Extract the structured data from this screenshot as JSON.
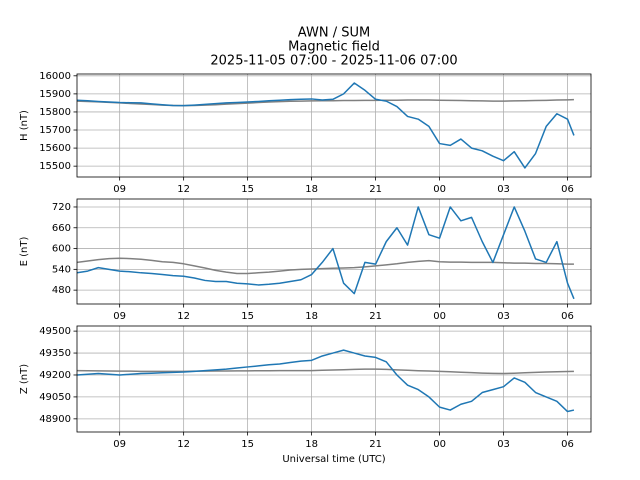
{
  "figure": {
    "title": [
      "AWN / SUM",
      "Magnetic field",
      "2025-11-05 07:00 - 2025-11-06 07:00"
    ]
  },
  "chart_data": [
    {
      "type": "line",
      "ylabel": "H (nT)",
      "grid": true,
      "x": [
        7,
        7.5,
        8,
        8.5,
        9,
        9.5,
        10,
        10.5,
        11,
        11.5,
        12,
        12.5,
        13,
        13.5,
        14,
        14.5,
        15,
        15.5,
        16,
        16.5,
        17,
        17.5,
        18,
        18.5,
        19,
        19.5,
        20,
        20.5,
        21,
        21.5,
        22,
        22.5,
        23,
        23.5,
        24,
        24.5,
        25,
        25.5,
        26,
        26.5,
        27,
        27.5,
        28,
        28.5,
        29,
        29.5,
        30,
        30.3
      ],
      "xlim": [
        7,
        31.1
      ],
      "xticks": [
        {
          "value": 9,
          "label": "09"
        },
        12,
        15,
        18,
        21,
        {
          "value": 24,
          "label": "00"
        },
        {
          "value": 27,
          "label": "03"
        },
        {
          "value": 30,
          "label": "06"
        }
      ],
      "ylim": [
        15440,
        16010
      ],
      "yticks": [
        15500,
        15600,
        15700,
        15800,
        15900,
        16000
      ],
      "series": [
        {
          "color": "#808080",
          "values": [
            15860,
            15858,
            15856,
            15853,
            15850,
            15847,
            15844,
            15841,
            15838,
            15836,
            15835,
            15836,
            15838,
            15840,
            15843,
            15846,
            15849,
            15852,
            15855,
            15857,
            15859,
            15860,
            15861,
            15862,
            15862,
            15863,
            15863,
            15864,
            15864,
            15865,
            15865,
            15866,
            15866,
            15866,
            15865,
            15864,
            15863,
            15862,
            15861,
            15860,
            15860,
            15861,
            15862,
            15863,
            15864,
            15866,
            15867,
            15868
          ]
        },
        {
          "color": "#1f77b4",
          "values": [
            15865,
            15862,
            15858,
            15855,
            15852,
            15851,
            15850,
            15845,
            15840,
            15836,
            15835,
            15838,
            15842,
            15846,
            15850,
            15852,
            15855,
            15858,
            15862,
            15865,
            15868,
            15870,
            15872,
            15866,
            15870,
            15900,
            15960,
            15920,
            15870,
            15860,
            15830,
            15775,
            15760,
            15720,
            15625,
            15615,
            15650,
            15600,
            15585,
            15555,
            15530,
            15580,
            15490,
            15570,
            15720,
            15790,
            15760,
            15670
          ]
        }
      ]
    },
    {
      "type": "line",
      "ylabel": "E (nT)",
      "grid": true,
      "x": [
        7,
        7.5,
        8,
        8.5,
        9,
        9.5,
        10,
        10.5,
        11,
        11.5,
        12,
        12.5,
        13,
        13.5,
        14,
        14.5,
        15,
        15.5,
        16,
        16.5,
        17,
        17.5,
        18,
        18.5,
        19,
        19.5,
        20,
        20.5,
        21,
        21.5,
        22,
        22.5,
        23,
        23.5,
        24,
        24.5,
        25,
        25.5,
        26,
        26.5,
        27,
        27.5,
        28,
        28.5,
        29,
        29.5,
        30,
        30.3
      ],
      "xlim": [
        7,
        31.1
      ],
      "xticks": [
        {
          "value": 9,
          "label": "09"
        },
        12,
        15,
        18,
        21,
        {
          "value": 24,
          "label": "00"
        },
        {
          "value": 27,
          "label": "03"
        },
        {
          "value": 30,
          "label": "06"
        }
      ],
      "ylim": [
        440,
        743
      ],
      "yticks": [
        480,
        540,
        600,
        660,
        720
      ],
      "series": [
        {
          "color": "#808080",
          "values": [
            560,
            564,
            568,
            571,
            572,
            571,
            569,
            566,
            562,
            560,
            556,
            550,
            544,
            537,
            532,
            528,
            528,
            530,
            532,
            535,
            538,
            540,
            541,
            542,
            543,
            544,
            545,
            547,
            550,
            553,
            556,
            560,
            563,
            565,
            562,
            561,
            561,
            560,
            560,
            560,
            559,
            558,
            558,
            557,
            557,
            556,
            555,
            555
          ]
        },
        {
          "color": "#1f77b4",
          "values": [
            530,
            535,
            545,
            540,
            535,
            533,
            530,
            528,
            525,
            522,
            520,
            515,
            508,
            505,
            505,
            500,
            498,
            495,
            497,
            500,
            505,
            510,
            525,
            560,
            600,
            500,
            470,
            560,
            555,
            620,
            660,
            610,
            720,
            640,
            630,
            720,
            680,
            690,
            620,
            560,
            640,
            720,
            650,
            570,
            560,
            620,
            500,
            455
          ]
        }
      ]
    },
    {
      "type": "line",
      "ylabel": "Z (nT)",
      "xlabel": "Universal time (UTC)",
      "grid": true,
      "x": [
        7,
        7.5,
        8,
        8.5,
        9,
        9.5,
        10,
        10.5,
        11,
        11.5,
        12,
        12.5,
        13,
        13.5,
        14,
        14.5,
        15,
        15.5,
        16,
        16.5,
        17,
        17.5,
        18,
        18.5,
        19,
        19.5,
        20,
        20.5,
        21,
        21.5,
        22,
        22.5,
        23,
        23.5,
        24,
        24.5,
        25,
        25.5,
        26,
        26.5,
        27,
        27.5,
        28,
        28.5,
        29,
        29.5,
        30,
        30.3
      ],
      "xlim": [
        7,
        31.1
      ],
      "xticks": [
        {
          "value": 9,
          "label": "09"
        },
        12,
        15,
        18,
        21,
        {
          "value": 24,
          "label": "00"
        },
        {
          "value": 27,
          "label": "03"
        },
        {
          "value": 30,
          "label": "06"
        }
      ],
      "ylim": [
        48810,
        49535
      ],
      "yticks": [
        48900,
        49050,
        49200,
        49350,
        49500
      ],
      "series": [
        {
          "color": "#808080",
          "values": [
            49230,
            49229,
            49228,
            49227,
            49226,
            49226,
            49225,
            49225,
            49225,
            49225,
            49225,
            49226,
            49226,
            49227,
            49227,
            49228,
            49228,
            49229,
            49229,
            49230,
            49230,
            49230,
            49230,
            49232,
            49234,
            49236,
            49238,
            49240,
            49240,
            49238,
            49235,
            49232,
            49229,
            49227,
            49225,
            49222,
            49219,
            49216,
            49213,
            49211,
            49210,
            49212,
            49215,
            49218,
            49220,
            49222,
            49224,
            49225
          ]
        },
        {
          "color": "#1f77b4",
          "values": [
            49200,
            49205,
            49210,
            49205,
            49200,
            49205,
            49210,
            49212,
            49215,
            49218,
            49220,
            49225,
            49230,
            49235,
            49240,
            49248,
            49255,
            49262,
            49270,
            49275,
            49285,
            49295,
            49300,
            49330,
            49350,
            49370,
            49350,
            49330,
            49320,
            49290,
            49200,
            49130,
            49100,
            49050,
            48980,
            48960,
            49000,
            49020,
            49080,
            49100,
            49120,
            49180,
            49150,
            49080,
            49050,
            49020,
            48950,
            48960
          ]
        }
      ]
    }
  ]
}
